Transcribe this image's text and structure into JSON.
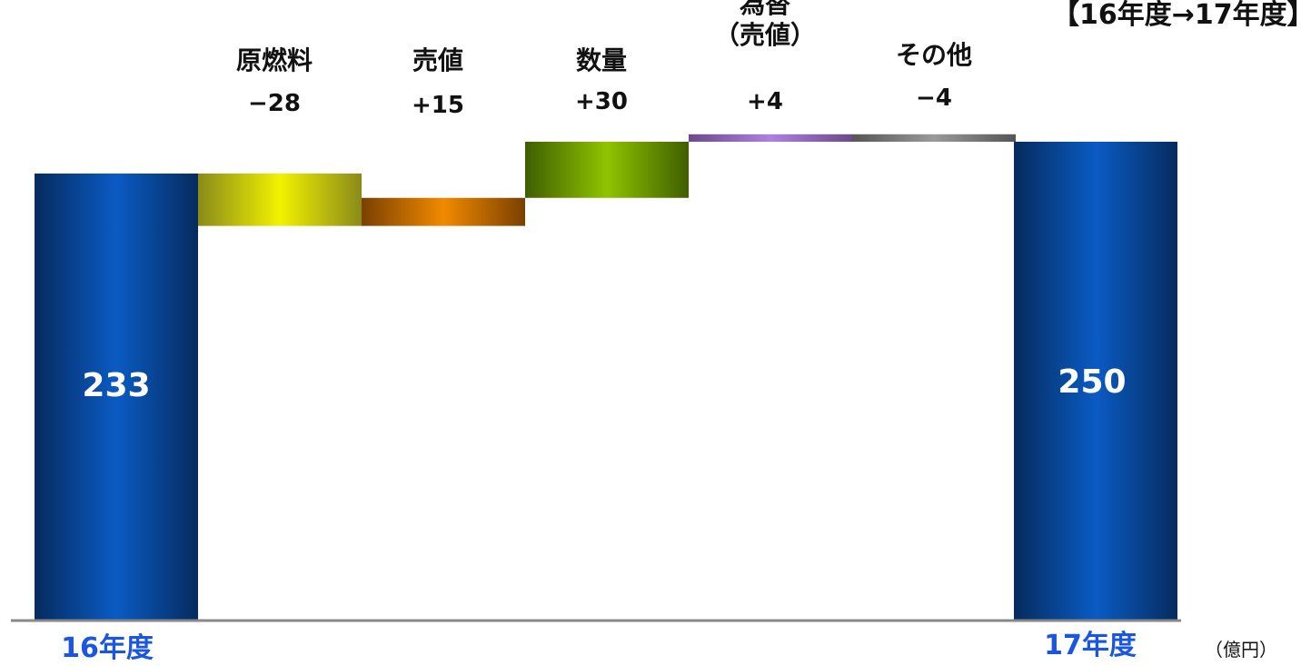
{
  "header": {
    "title": "【16年度→17年度】"
  },
  "unit": "（億円）",
  "chart_data": {
    "type": "bar",
    "subtype": "waterfall",
    "categories": [
      "16年度",
      "原燃料",
      "売値",
      "数量",
      "為替\n（売値）",
      "その他",
      "17年度"
    ],
    "start": {
      "label": "16年度",
      "value": 233
    },
    "end": {
      "label": "17年度",
      "value": 250
    },
    "steps": [
      {
        "name": "原燃料",
        "value": -28,
        "display": "−28"
      },
      {
        "name": "売値",
        "value": 15,
        "display": "+15"
      },
      {
        "name": "数量",
        "value": 30,
        "display": "+30"
      },
      {
        "name": "為替（売値）",
        "lines": [
          "為替",
          "（売値）"
        ],
        "value": 4,
        "display": "+4"
      },
      {
        "name": "その他",
        "value": -4,
        "display": "−4"
      }
    ],
    "title": "",
    "xlabel": "",
    "ylabel": "",
    "ylim": [
      0,
      260
    ],
    "grid": false,
    "colors": {
      "total": "#0a5bc4",
      "total_edge": "#062b5e",
      "category_label": "#1a56e0",
      "baseline": "#888888",
      "step_colors": [
        "#f2f200",
        "#f08a00",
        "#8fc400",
        "#b07fe0",
        "#9a9a9a"
      ],
      "step_edges": [
        "#8a8a1a",
        "#7a4000",
        "#3f5e00",
        "#6b4a8a",
        "#555555"
      ]
    }
  }
}
